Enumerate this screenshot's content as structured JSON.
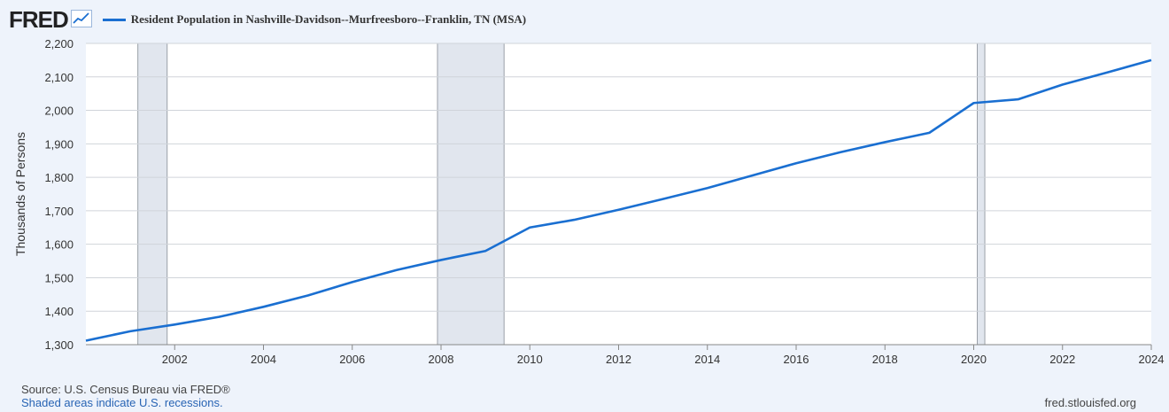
{
  "header": {
    "logo_text": "FRED",
    "legend_label": "Resident Population in Nashville-Davidson--Murfreesboro--Franklin, TN (MSA)"
  },
  "footer": {
    "source": "Source: U.S. Census Bureau via FRED®",
    "recession_note": "Shaded areas indicate U.S. recessions.",
    "site": "fred.stlouisfed.org"
  },
  "colors": {
    "line": "#1a6fd1",
    "recession": "#e1e6ee",
    "grid": "#d0d4da",
    "background": "#eef3fb"
  },
  "chart_data": {
    "type": "line",
    "title": "",
    "ylabel": "Thousands of Persons",
    "xlabel": "",
    "xlim": [
      2000,
      2024
    ],
    "ylim": [
      1300,
      2200
    ],
    "x_ticks": [
      2002,
      2004,
      2006,
      2008,
      2010,
      2012,
      2014,
      2016,
      2018,
      2020,
      2022,
      2024
    ],
    "y_ticks": [
      1300,
      1400,
      1500,
      1600,
      1700,
      1800,
      1900,
      2000,
      2100,
      2200
    ],
    "grid": true,
    "recessions": [
      [
        2001.17,
        2001.83
      ],
      [
        2007.92,
        2009.42
      ],
      [
        2020.08,
        2020.25
      ]
    ],
    "series": [
      {
        "name": "Resident Population in Nashville-Davidson--Murfreesboro--Franklin, TN (MSA)",
        "x": [
          2000,
          2001,
          2002,
          2003,
          2004,
          2005,
          2006,
          2007,
          2008,
          2009,
          2010,
          2011,
          2012,
          2013,
          2014,
          2015,
          2016,
          2017,
          2018,
          2019,
          2020,
          2021,
          2022,
          2023,
          2024
        ],
        "values": [
          1312,
          1340,
          1360,
          1383,
          1413,
          1447,
          1487,
          1523,
          1553,
          1580,
          1650,
          1673,
          1703,
          1735,
          1768,
          1805,
          1842,
          1875,
          1905,
          1933,
          2022,
          2033,
          2077,
          2113,
          2150
        ]
      }
    ]
  }
}
